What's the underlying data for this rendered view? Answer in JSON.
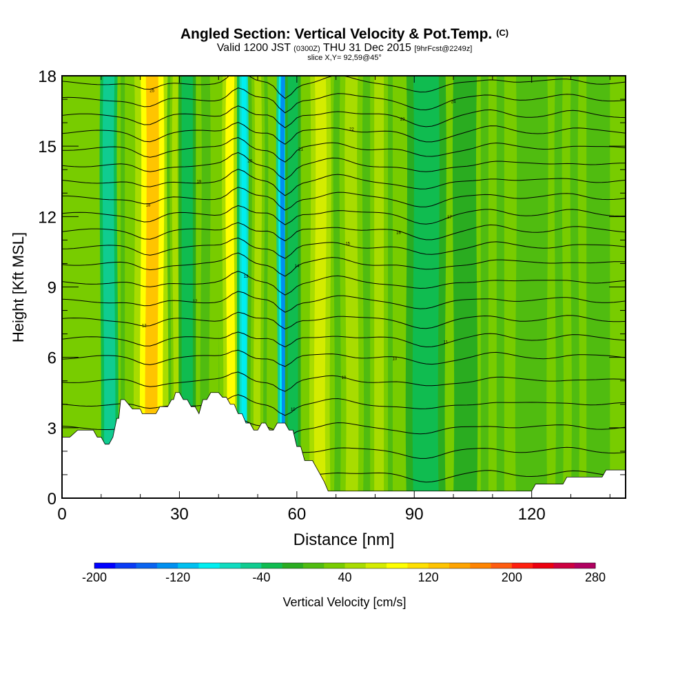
{
  "header": {
    "title": "Angled Section: Vertical Velocity & Pot.Temp.",
    "title_unit": "(C)",
    "valid_prefix": "Valid 1200 JST",
    "valid_utc": "(0300Z)",
    "valid_date": "THU 31 Dec 2015",
    "forecast": "[9hrFcst@2249z]",
    "slice": "slice X,Y= 92,59@45°"
  },
  "chart_data": {
    "type": "heatmap",
    "title": "Angled Section: Vertical Velocity & Pot.Temp.",
    "xlabel": "Distance [nm]",
    "ylabel": "Height [Kft MSL]",
    "xlim": [
      0,
      144
    ],
    "ylim": [
      0,
      18
    ],
    "x_ticks": [
      0,
      30,
      60,
      90,
      120
    ],
    "y_ticks": [
      0,
      3,
      6,
      9,
      12,
      15,
      18
    ],
    "grid": false,
    "colorbar": {
      "label": "Vertical Velocity [cm/s]",
      "min": -200,
      "max": 280,
      "step": 20,
      "tick_labels": [
        "-200",
        "-120",
        "-40",
        "40",
        "120",
        "200",
        "280"
      ],
      "colors": [
        "#0000ff",
        "#0a3cf5",
        "#0a64f0",
        "#0090f0",
        "#00c0f0",
        "#00eef0",
        "#10dcc0",
        "#10cc90",
        "#10bc50",
        "#2aac20",
        "#50bc10",
        "#78cc00",
        "#a8dc00",
        "#d4ec00",
        "#ffff00",
        "#ffe000",
        "#ffc400",
        "#ffa400",
        "#ff8400",
        "#ff5c10",
        "#ff2010",
        "#ec0010",
        "#cc0040",
        "#b00060",
        "#900080"
      ]
    },
    "velocity_columns": [
      {
        "x": 12,
        "w": 2.2,
        "v": -60
      },
      {
        "x": 18,
        "w": 3.0,
        "v": 30
      },
      {
        "x": 23,
        "w": 4.5,
        "v": 120
      },
      {
        "x": 29,
        "w": 2.0,
        "v": 40
      },
      {
        "x": 32,
        "w": 2.2,
        "v": -40
      },
      {
        "x": 39,
        "w": 3.5,
        "v": 20
      },
      {
        "x": 43,
        "w": 3.0,
        "v": 80
      },
      {
        "x": 46.5,
        "w": 1.8,
        "v": -90
      },
      {
        "x": 50,
        "w": 2.5,
        "v": 40
      },
      {
        "x": 56.5,
        "w": 1.6,
        "v": -140
      },
      {
        "x": 59,
        "w": 2.0,
        "v": -40
      },
      {
        "x": 66,
        "w": 4.0,
        "v": 60
      },
      {
        "x": 74,
        "w": 4.5,
        "v": 50
      },
      {
        "x": 81,
        "w": 3.5,
        "v": 40
      },
      {
        "x": 93,
        "w": 5.0,
        "v": -40
      },
      {
        "x": 103,
        "w": 3.0,
        "v": -10
      },
      {
        "x": 110,
        "w": 3.0,
        "v": 20
      },
      {
        "x": 120,
        "w": 4.0,
        "v": 10
      },
      {
        "x": 129,
        "w": 3.0,
        "v": 20
      },
      {
        "x": 137,
        "w": 3.0,
        "v": 10
      }
    ],
    "terrain": {
      "x": [
        0,
        2,
        4,
        8,
        9,
        10,
        11,
        12,
        13,
        14,
        14.5,
        15,
        16,
        18,
        20,
        20.5,
        24,
        25,
        27,
        28,
        28.5,
        29,
        30,
        31,
        32,
        33,
        34,
        35,
        36,
        37,
        38,
        39,
        40,
        41,
        42,
        43,
        44,
        45,
        46,
        47,
        48,
        49,
        50,
        51,
        52,
        53,
        54,
        55,
        56,
        57,
        58,
        59,
        60,
        61,
        62,
        63,
        64,
        65,
        66,
        67,
        68,
        69,
        120,
        121,
        128,
        129,
        138,
        139,
        144
      ],
      "height": [
        2.6,
        2.6,
        2.9,
        2.9,
        2.6,
        2.6,
        2.3,
        2.3,
        2.6,
        3.4,
        3.4,
        4.2,
        4.2,
        3.8,
        3.8,
        3.6,
        3.6,
        3.9,
        3.9,
        4.2,
        4.2,
        4.5,
        4.5,
        4.2,
        4.2,
        3.9,
        3.9,
        3.6,
        4.2,
        4.2,
        4.5,
        4.5,
        4.5,
        4.3,
        4.3,
        4.0,
        4.0,
        3.6,
        3.6,
        3.2,
        3.2,
        2.9,
        2.9,
        3.2,
        3.2,
        2.9,
        2.9,
        3.2,
        3.2,
        3.2,
        2.9,
        2.9,
        2.2,
        2.2,
        1.6,
        1.6,
        1.6,
        1.3,
        1.0,
        0.7,
        0.3,
        0.3,
        0.3,
        0.6,
        0.6,
        0.9,
        0.9,
        1.2,
        1.2
      ]
    },
    "theta_contours": [
      {
        "base": 1.0,
        "label": "8"
      },
      {
        "base": 2.0,
        "label": "8"
      },
      {
        "base": 3.0,
        "label": "9"
      },
      {
        "base": 4.0,
        "label": "10"
      },
      {
        "base": 5.0,
        "label": "10"
      },
      {
        "base": 6.0,
        "label": "10"
      },
      {
        "base": 6.8,
        "label": "11"
      },
      {
        "base": 7.6,
        "label": "12"
      },
      {
        "base": 8.4,
        "label": "12"
      },
      {
        "base": 9.2,
        "label": "13"
      },
      {
        "base": 10.0,
        "label": "14"
      },
      {
        "base": 10.7,
        "label": "15"
      },
      {
        "base": 11.4,
        "label": "16"
      },
      {
        "base": 12.1,
        "label": "17"
      },
      {
        "base": 12.8,
        "label": "18"
      },
      {
        "base": 13.5,
        "label": "19"
      },
      {
        "base": 14.2,
        "label": "20"
      },
      {
        "base": 14.9,
        "label": "21"
      },
      {
        "base": 15.6,
        "label": "22"
      },
      {
        "base": 16.3,
        "label": "23"
      },
      {
        "base": 17.0,
        "label": "24"
      },
      {
        "base": 17.7,
        "label": "25"
      }
    ]
  }
}
